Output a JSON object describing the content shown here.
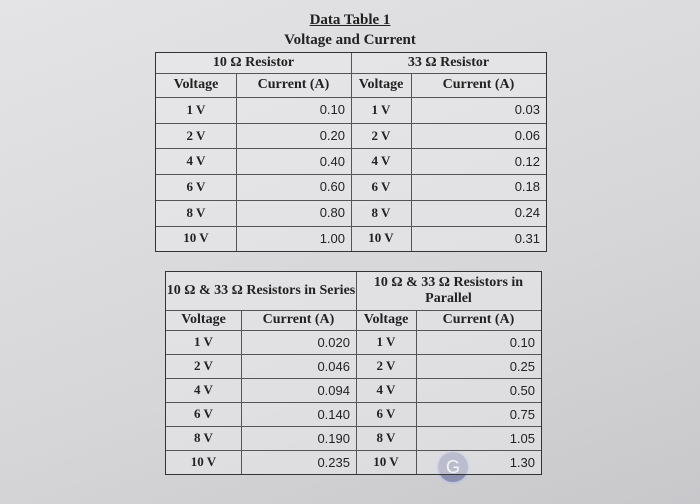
{
  "header": {
    "title": "Data Table 1",
    "subtitle": "Voltage and Current"
  },
  "tables": [
    {
      "groups": [
        "10 Ω Resistor",
        "33 Ω Resistor"
      ],
      "columns": [
        "Voltage",
        "Current (A)",
        "Voltage",
        "Current (A)"
      ],
      "rows": [
        [
          "1 V",
          "0.10",
          "1 V",
          "0.03"
        ],
        [
          "2 V",
          "0.20",
          "2 V",
          "0.06"
        ],
        [
          "4 V",
          "0.40",
          "4 V",
          "0.12"
        ],
        [
          "6 V",
          "0.60",
          "6 V",
          "0.18"
        ],
        [
          "8 V",
          "0.80",
          "8 V",
          "0.24"
        ],
        [
          "10 V",
          "1.00",
          "10 V",
          "0.31"
        ]
      ]
    },
    {
      "groups": [
        "10 Ω & 33 Ω Resistors in Series",
        "10 Ω & 33 Ω Resistors in Parallel"
      ],
      "columns": [
        "Voltage",
        "Current (A)",
        "Voltage",
        "Current (A)"
      ],
      "rows": [
        [
          "1 V",
          "0.020",
          "1 V",
          "0.10"
        ],
        [
          "2 V",
          "0.046",
          "2 V",
          "0.25"
        ],
        [
          "4 V",
          "0.094",
          "4 V",
          "0.50"
        ],
        [
          "6 V",
          "0.140",
          "6 V",
          "0.75"
        ],
        [
          "8 V",
          "0.190",
          "8 V",
          "1.05"
        ],
        [
          "10 V",
          "0.235",
          "10 V",
          "1.30"
        ]
      ]
    }
  ],
  "badge": "G"
}
